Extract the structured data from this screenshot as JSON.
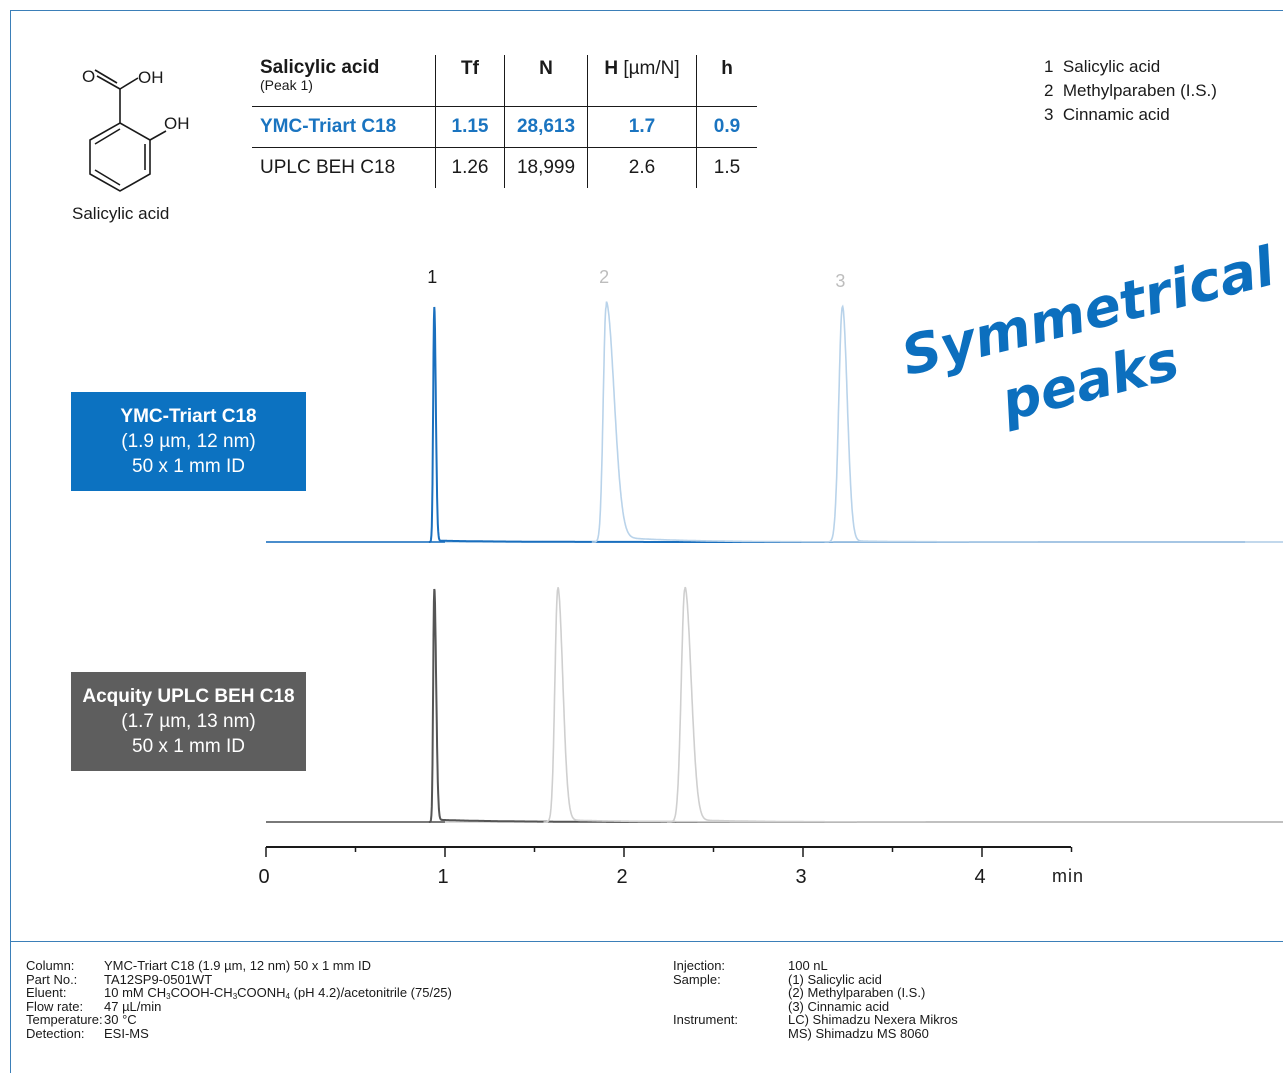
{
  "structure": {
    "groups": [
      "O",
      "OH",
      "OH"
    ],
    "caption": "Salicylic acid"
  },
  "table": {
    "header": {
      "title": "Salicylic acid",
      "subtitle": "(Peak 1)",
      "tf": "Tf",
      "n": "N",
      "h_unit_bold": "H",
      "h_unit_rest": " [µm/N]",
      "h": "h"
    },
    "rows": [
      {
        "column": "YMC-Triart C18",
        "tf": "1.15",
        "n": "28,613",
        "H": "1.7",
        "h": "0.9"
      },
      {
        "column": "UPLC BEH C18",
        "tf": "1.26",
        "n": "18,999",
        "H": "2.6",
        "h": "1.5"
      }
    ]
  },
  "peak_list": [
    "1  Salicylic acid",
    "2  Methylparaben (I.S.)",
    "3  Cinnamic acid"
  ],
  "slogan": {
    "line1": "Symmetrical",
    "line2": "peaks"
  },
  "badges": {
    "ymc": {
      "name": "YMC-Triart C18",
      "particle": "(1.9 µm, 12 nm)",
      "dims": "50 x 1 mm ID"
    },
    "beh": {
      "name": "Acquity UPLC BEH C18",
      "particle": "(1.7 µm, 13 nm)",
      "dims": "50 x 1 mm ID"
    }
  },
  "colors": {
    "ymc_blue": "#0c72c1",
    "ymc_trace": "#1a6fbe",
    "ymc_faint": "#b9d3ea",
    "beh_gray": "#5e5e5e",
    "beh_trace": "#555555",
    "beh_faint": "#cfcfcf",
    "frame": "#3b7fb8"
  },
  "chart_data": {
    "type": "line",
    "xlabel": "min",
    "xlim": [
      0,
      4.5
    ],
    "x_ticks": [
      "0",
      "1",
      "2",
      "3",
      "4"
    ],
    "peak_labels": [
      "1",
      "2",
      "3"
    ],
    "series": [
      {
        "name": "YMC-Triart C18",
        "peaks": [
          {
            "peak": "1",
            "rt": 0.94,
            "rel_height": 1.0
          },
          {
            "peak": "2",
            "rt": 1.9,
            "rel_height": 1.0
          },
          {
            "peak": "3",
            "rt": 3.22,
            "rel_height": 1.0
          }
        ]
      },
      {
        "name": "Acquity UPLC BEH C18",
        "peaks": [
          {
            "peak": "1",
            "rt": 0.94,
            "rel_height": 1.0
          },
          {
            "peak": "2",
            "rt": 1.63,
            "rel_height": 1.0
          },
          {
            "peak": "3",
            "rt": 2.34,
            "rel_height": 1.0
          }
        ]
      }
    ]
  },
  "conditions": {
    "left": [
      {
        "k": "Column:",
        "v": "YMC-Triart C18 (1.9 µm, 12 nm) 50 x 1 mm ID"
      },
      {
        "k": "Part No.:",
        "v": "TA12SP9-0501WT"
      },
      {
        "k": "Eluent:",
        "v": "10 mM CH3COOH-CH3COONH4 (pH 4.2)/acetonitrile (75/25)"
      },
      {
        "k": "Flow rate:",
        "v": "47 µL/min"
      },
      {
        "k": "Temperature:",
        "v": "30 °C"
      },
      {
        "k": "Detection:",
        "v": "ESI-MS"
      }
    ],
    "right": [
      {
        "k": "Injection:",
        "v": "100 nL"
      },
      {
        "k": "Sample:",
        "v": "(1) Salicylic acid"
      },
      {
        "k": "",
        "v": "(2) Methylparaben (I.S.)"
      },
      {
        "k": "",
        "v": "(3) Cinnamic acid"
      },
      {
        "k": "Instrument:",
        "v": "LC) Shimadzu Nexera Mikros"
      },
      {
        "k": "",
        "v": "MS) Shimadzu MS 8060"
      }
    ]
  }
}
